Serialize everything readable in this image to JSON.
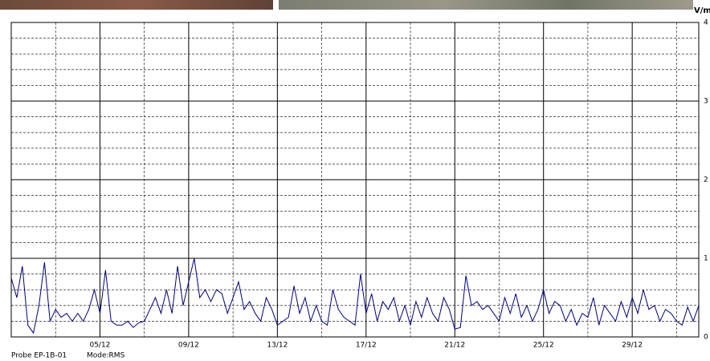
{
  "chart_data": {
    "type": "line",
    "y_unit": "V/m",
    "probe": "Probe EP-1B-01",
    "mode": "Mode:RMS",
    "xlim": [
      1,
      32
    ],
    "xticks": [
      {
        "value": 5,
        "label": "05/12"
      },
      {
        "value": 9,
        "label": "09/12"
      },
      {
        "value": 13,
        "label": "13/12"
      },
      {
        "value": 17,
        "label": "17/12"
      },
      {
        "value": 21,
        "label": "21/12"
      },
      {
        "value": 25,
        "label": "25/12"
      },
      {
        "value": 29,
        "label": "29/12"
      }
    ],
    "xminor_ticks": [
      3,
      7,
      11,
      15,
      19,
      23,
      27,
      31
    ],
    "ylim": [
      0,
      4
    ],
    "yticks": [
      0,
      1,
      2,
      3,
      4
    ],
    "yminor_ticks": [
      0.2,
      0.4,
      0.6,
      0.8,
      1.2,
      1.4,
      1.6,
      1.8,
      2.2,
      2.4,
      2.6,
      2.8,
      3.2,
      3.4,
      3.6,
      3.8
    ],
    "grid": true,
    "series": [
      {
        "color": "#000080",
        "x": [
          1,
          1.25,
          1.5,
          1.75,
          2,
          2.25,
          2.5,
          2.75,
          3,
          3.25,
          3.5,
          3.75,
          4,
          4.25,
          4.5,
          4.75,
          5,
          5.25,
          5.5,
          5.75,
          6,
          6.25,
          6.5,
          6.75,
          7,
          7.25,
          7.5,
          7.75,
          8,
          8.25,
          8.5,
          8.75,
          9,
          9.25,
          9.5,
          9.75,
          10,
          10.25,
          10.5,
          10.75,
          11,
          11.25,
          11.5,
          11.75,
          12,
          12.25,
          12.5,
          12.75,
          13,
          13.25,
          13.5,
          13.75,
          14,
          14.25,
          14.5,
          14.75,
          15,
          15.25,
          15.5,
          15.75,
          16,
          16.25,
          16.5,
          16.75,
          17,
          17.25,
          17.5,
          17.75,
          18,
          18.25,
          18.5,
          18.75,
          19,
          19.25,
          19.5,
          19.75,
          20,
          20.25,
          20.5,
          20.75,
          21,
          21.25,
          21.5,
          21.75,
          22,
          22.25,
          22.5,
          22.75,
          23,
          23.25,
          23.5,
          23.75,
          24,
          24.25,
          24.5,
          24.75,
          25,
          25.25,
          25.5,
          25.75,
          26,
          26.25,
          26.5,
          26.75,
          27,
          27.25,
          27.5,
          27.75,
          28,
          28.25,
          28.5,
          28.75,
          29,
          29.25,
          29.5,
          29.75,
          30,
          30.25,
          30.5,
          30.75,
          31,
          31.25,
          31.5,
          31.75,
          32
        ],
        "values": [
          0.75,
          0.5,
          0.9,
          0.15,
          0.05,
          0.4,
          0.95,
          0.2,
          0.35,
          0.25,
          0.3,
          0.2,
          0.3,
          0.2,
          0.35,
          0.6,
          0.3,
          0.85,
          0.2,
          0.15,
          0.15,
          0.2,
          0.12,
          0.18,
          0.2,
          0.35,
          0.5,
          0.3,
          0.6,
          0.3,
          0.9,
          0.4,
          0.7,
          1.0,
          0.5,
          0.6,
          0.45,
          0.6,
          0.55,
          0.3,
          0.5,
          0.7,
          0.35,
          0.45,
          0.3,
          0.2,
          0.5,
          0.35,
          0.15,
          0.2,
          0.25,
          0.65,
          0.3,
          0.5,
          0.2,
          0.4,
          0.2,
          0.15,
          0.6,
          0.35,
          0.25,
          0.2,
          0.15,
          0.8,
          0.3,
          0.55,
          0.2,
          0.45,
          0.35,
          0.5,
          0.2,
          0.4,
          0.15,
          0.45,
          0.25,
          0.5,
          0.3,
          0.2,
          0.5,
          0.35,
          0.1,
          0.12,
          0.78,
          0.4,
          0.45,
          0.35,
          0.4,
          0.3,
          0.2,
          0.5,
          0.3,
          0.55,
          0.25,
          0.4,
          0.2,
          0.35,
          0.6,
          0.3,
          0.45,
          0.4,
          0.2,
          0.35,
          0.15,
          0.3,
          0.25,
          0.5,
          0.15,
          0.4,
          0.3,
          0.2,
          0.45,
          0.25,
          0.5,
          0.3,
          0.6,
          0.35,
          0.4,
          0.2,
          0.35,
          0.3,
          0.2,
          0.15,
          0.38,
          0.2,
          0.4
        ]
      }
    ]
  }
}
